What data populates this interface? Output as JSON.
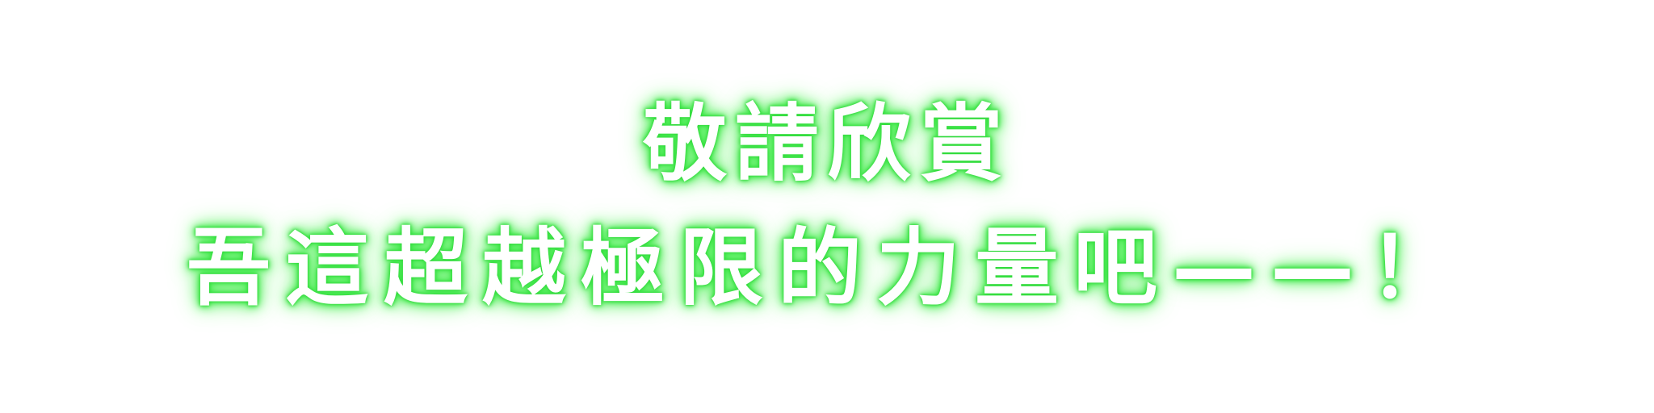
{
  "dialog": {
    "line_1": "敬請欣賞",
    "line_2": "吾這超越極限的力量吧——！"
  },
  "colors": {
    "text": "#ffffff",
    "glow": "#3be845",
    "background": "#ffffff"
  }
}
